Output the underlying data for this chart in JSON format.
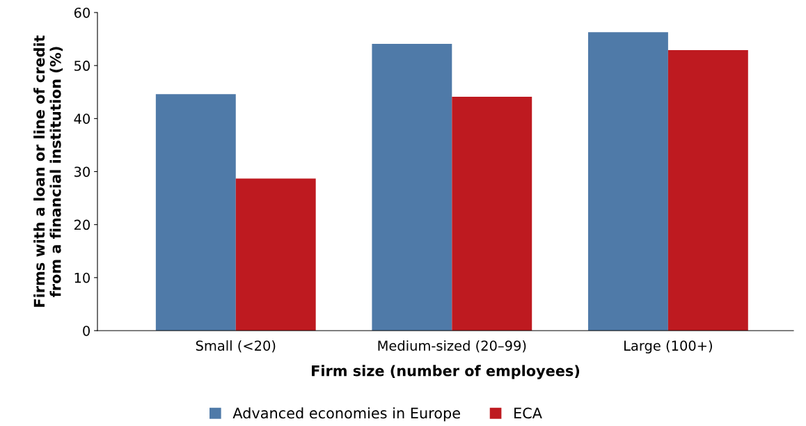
{
  "chart_data": {
    "type": "bar",
    "xlabel": "Firm size (number of employees)",
    "ylabel": "Firms with a loan or line of credit\nfrom a financial institution (%)",
    "categories": [
      "Small (<20)",
      "Medium-sized (20–99)",
      "Large (100+)"
    ],
    "series": [
      {
        "name": "Advanced economies in Europe",
        "color": "#4f7aa8",
        "values": [
          44.6,
          54.1,
          56.3
        ]
      },
      {
        "name": "ECA",
        "color": "#be1a20",
        "values": [
          28.7,
          44.1,
          52.9
        ]
      }
    ],
    "ylim": [
      0,
      60
    ],
    "yticks": [
      0,
      10,
      20,
      30,
      40,
      50,
      60
    ],
    "grid": false,
    "legend": "bottom"
  }
}
